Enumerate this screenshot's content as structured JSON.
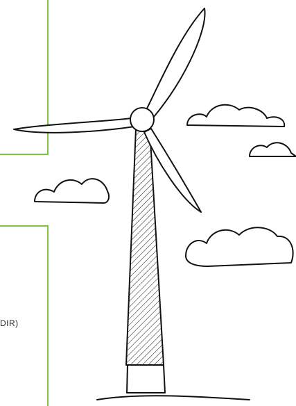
{
  "screenshot": {
    "text_fragment": "DIR)"
  }
}
